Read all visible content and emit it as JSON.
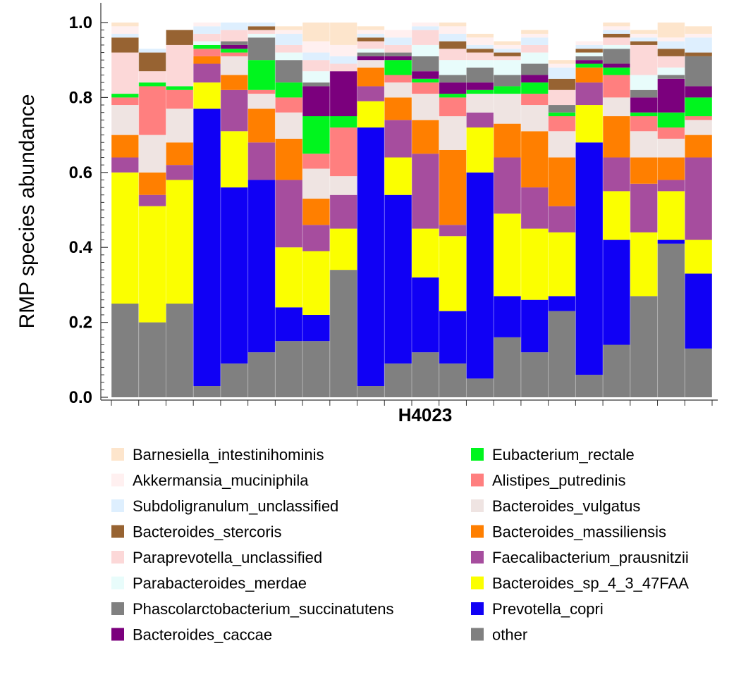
{
  "chart_data": {
    "type": "bar",
    "stacked": true,
    "ylabel": "RMP species abundance",
    "xlabel": "H4023",
    "ylim": [
      0,
      1.0
    ],
    "yticks": [
      0.0,
      0.2,
      0.4,
      0.6,
      0.8,
      1.0
    ],
    "ytick_labels": [
      "0.0",
      "0.2",
      "0.4",
      "0.6",
      "0.8",
      "1.0"
    ],
    "grid": false,
    "legend_position": "bottom",
    "series": [
      {
        "name": "other",
        "color": "#808080",
        "values": [
          0.25,
          0.2,
          0.25,
          0.03,
          0.09,
          0.12,
          0.15,
          0.15,
          0.34,
          0.03,
          0.09,
          0.12,
          0.09,
          0.05,
          0.16,
          0.12,
          0.23,
          0.06,
          0.14,
          0.27,
          0.41,
          0.13
        ]
      },
      {
        "name": "Prevotella_copri",
        "color": "#1000f5",
        "values": [
          0,
          0,
          0,
          0.74,
          0.47,
          0.46,
          0.09,
          0.07,
          0,
          0.69,
          0.45,
          0.2,
          0.14,
          0.55,
          0.11,
          0.14,
          0.04,
          0.62,
          0.28,
          0,
          0.01,
          0.2
        ]
      },
      {
        "name": "Bacteroides_sp_4_3_47FAA",
        "color": "#fbff00",
        "values": [
          0.35,
          0.31,
          0.33,
          0.07,
          0.15,
          0,
          0.16,
          0.17,
          0.11,
          0.07,
          0.1,
          0.13,
          0.2,
          0.12,
          0.22,
          0.19,
          0.17,
          0.1,
          0.13,
          0.17,
          0.13,
          0.09
        ]
      },
      {
        "name": "Faecalibacterium_prausnitzii",
        "color": "#a64d9e",
        "values": [
          0.04,
          0.03,
          0.04,
          0.05,
          0.11,
          0.1,
          0.18,
          0.07,
          0.09,
          0.04,
          0.1,
          0.2,
          0.03,
          0.04,
          0.15,
          0.11,
          0.07,
          0.06,
          0.09,
          0.13,
          0.03,
          0.22
        ]
      },
      {
        "name": "Bacteroides_massiliensis",
        "color": "#ff7f00",
        "values": [
          0.06,
          0.06,
          0.06,
          0.02,
          0.04,
          0.09,
          0.11,
          0.07,
          0,
          0.05,
          0.06,
          0.09,
          0.2,
          0,
          0.09,
          0.15,
          0.13,
          0.04,
          0.11,
          0.07,
          0.06,
          0.06
        ]
      },
      {
        "name": "Bacteroides_vulgatus",
        "color": "#efe4e2",
        "values": [
          0.08,
          0.1,
          0.09,
          0,
          0.05,
          0.04,
          0.07,
          0.08,
          0.05,
          0.02,
          0.04,
          0.07,
          0.09,
          0.05,
          0.08,
          0.07,
          0.07,
          0,
          0.05,
          0.07,
          0.05,
          0.04
        ]
      },
      {
        "name": "Alistipes_putredinis",
        "color": "#ff7f7f",
        "values": [
          0.02,
          0.13,
          0.05,
          0.02,
          0.01,
          0.01,
          0.04,
          0.04,
          0.13,
          0,
          0.02,
          0.03,
          0.05,
          0,
          0,
          0.03,
          0.04,
          0,
          0.06,
          0.04,
          0.03,
          0.01
        ]
      },
      {
        "name": "Eubacterium_rectale",
        "color": "#00f51e",
        "values": [
          0.01,
          0.01,
          0.01,
          0.01,
          0.01,
          0.08,
          0.04,
          0.1,
          0.03,
          0,
          0.04,
          0.01,
          0.01,
          0.01,
          0.02,
          0.03,
          0.01,
          0.01,
          0.02,
          0.01,
          0.04,
          0.05
        ]
      },
      {
        "name": "Bacteroides_caccae",
        "color": "#7b007d",
        "values": [
          0,
          0,
          0,
          0,
          0.01,
          0,
          0,
          0.08,
          0.12,
          0.01,
          0.01,
          0.02,
          0.03,
          0.02,
          0,
          0.02,
          0,
          0.01,
          0.01,
          0.04,
          0.09,
          0.03
        ]
      },
      {
        "name": "Phascolarctobacterium_succinatutens",
        "color": "#808080",
        "values": [
          0,
          0,
          0,
          0,
          0.01,
          0.06,
          0.06,
          0.01,
          0,
          0.01,
          0.01,
          0.04,
          0.02,
          0.04,
          0.03,
          0.03,
          0.02,
          0.01,
          0.04,
          0.02,
          0.01,
          0.08
        ]
      },
      {
        "name": "Parabacteroides_merdae",
        "color": "#e8fcfb",
        "values": [
          0,
          0,
          0,
          0.01,
          0,
          0.01,
          0.02,
          0.03,
          0,
          0.01,
          0,
          0.03,
          0.04,
          0.02,
          0.04,
          0.03,
          0,
          0.01,
          0.01,
          0.04,
          0.02,
          0
        ]
      },
      {
        "name": "Paraprevotella_unclassified",
        "color": "#fcd8d8",
        "values": [
          0.11,
          0.03,
          0.11,
          0.02,
          0.03,
          0.01,
          0.02,
          0.03,
          0.02,
          0.02,
          0.02,
          0.04,
          0.03,
          0.02,
          0.01,
          0.02,
          0.04,
          0,
          0.02,
          0.08,
          0.03,
          0
        ]
      },
      {
        "name": "Bacteroides_stercoris",
        "color": "#976332",
        "values": [
          0.04,
          0.05,
          0.04,
          0,
          0,
          0.01,
          0,
          0,
          0,
          0.01,
          0,
          0,
          0.02,
          0.01,
          0.01,
          0,
          0.03,
          0.01,
          0.01,
          0.01,
          0.02,
          0.01
        ]
      },
      {
        "name": "Subdoligranulum_unclassified",
        "color": "#deeffe",
        "values": [
          0.01,
          0.01,
          0,
          0.02,
          0.03,
          0.01,
          0.03,
          0.02,
          0.02,
          0.01,
          0.02,
          0.01,
          0.02,
          0.01,
          0.01,
          0.02,
          0.03,
          0.01,
          0.01,
          0.01,
          0.02,
          0.04
        ]
      },
      {
        "name": "Akkermansia_muciniphila",
        "color": "#fff0f0",
        "values": [
          0.02,
          0,
          0,
          0.02,
          0.02,
          0,
          0.01,
          0.03,
          0.03,
          0.01,
          0.02,
          0.01,
          0.02,
          0.02,
          0.01,
          0.01,
          0.01,
          0.01,
          0.01,
          0.01,
          0.01,
          0.01
        ]
      },
      {
        "name": "Barnesiella_intestinihominis",
        "color": "#fde5cc",
        "values": [
          0.01,
          0,
          0,
          0.01,
          0,
          0,
          0.01,
          0.05,
          0.06,
          0.01,
          0,
          0.01,
          0.02,
          0.01,
          0.01,
          0.01,
          0.01,
          0,
          0.01,
          0.01,
          0.04,
          0.02
        ]
      }
    ],
    "legend": [
      {
        "name": "Barnesiella_intestinihominis",
        "color": "#fde5cc"
      },
      {
        "name": "Eubacterium_rectale",
        "color": "#00f51e"
      },
      {
        "name": "Akkermansia_muciniphila",
        "color": "#fff0f0"
      },
      {
        "name": "Alistipes_putredinis",
        "color": "#ff7f7f"
      },
      {
        "name": "Subdoligranulum_unclassified",
        "color": "#deeffe"
      },
      {
        "name": "Bacteroides_vulgatus",
        "color": "#efe4e2"
      },
      {
        "name": "Bacteroides_stercoris",
        "color": "#976332"
      },
      {
        "name": "Bacteroides_massiliensis",
        "color": "#ff7f00"
      },
      {
        "name": "Paraprevotella_unclassified",
        "color": "#fcd8d8"
      },
      {
        "name": "Faecalibacterium_prausnitzii",
        "color": "#a64d9e"
      },
      {
        "name": "Parabacteroides_merdae",
        "color": "#e8fcfb"
      },
      {
        "name": "Bacteroides_sp_4_3_47FAA",
        "color": "#fbff00"
      },
      {
        "name": "Phascolarctobacterium_succinatutens",
        "color": "#808080"
      },
      {
        "name": "Prevotella_copri",
        "color": "#1000f5"
      },
      {
        "name": "Bacteroides_caccae",
        "color": "#7b007d"
      },
      {
        "name": "other",
        "color": "#808080"
      }
    ]
  }
}
